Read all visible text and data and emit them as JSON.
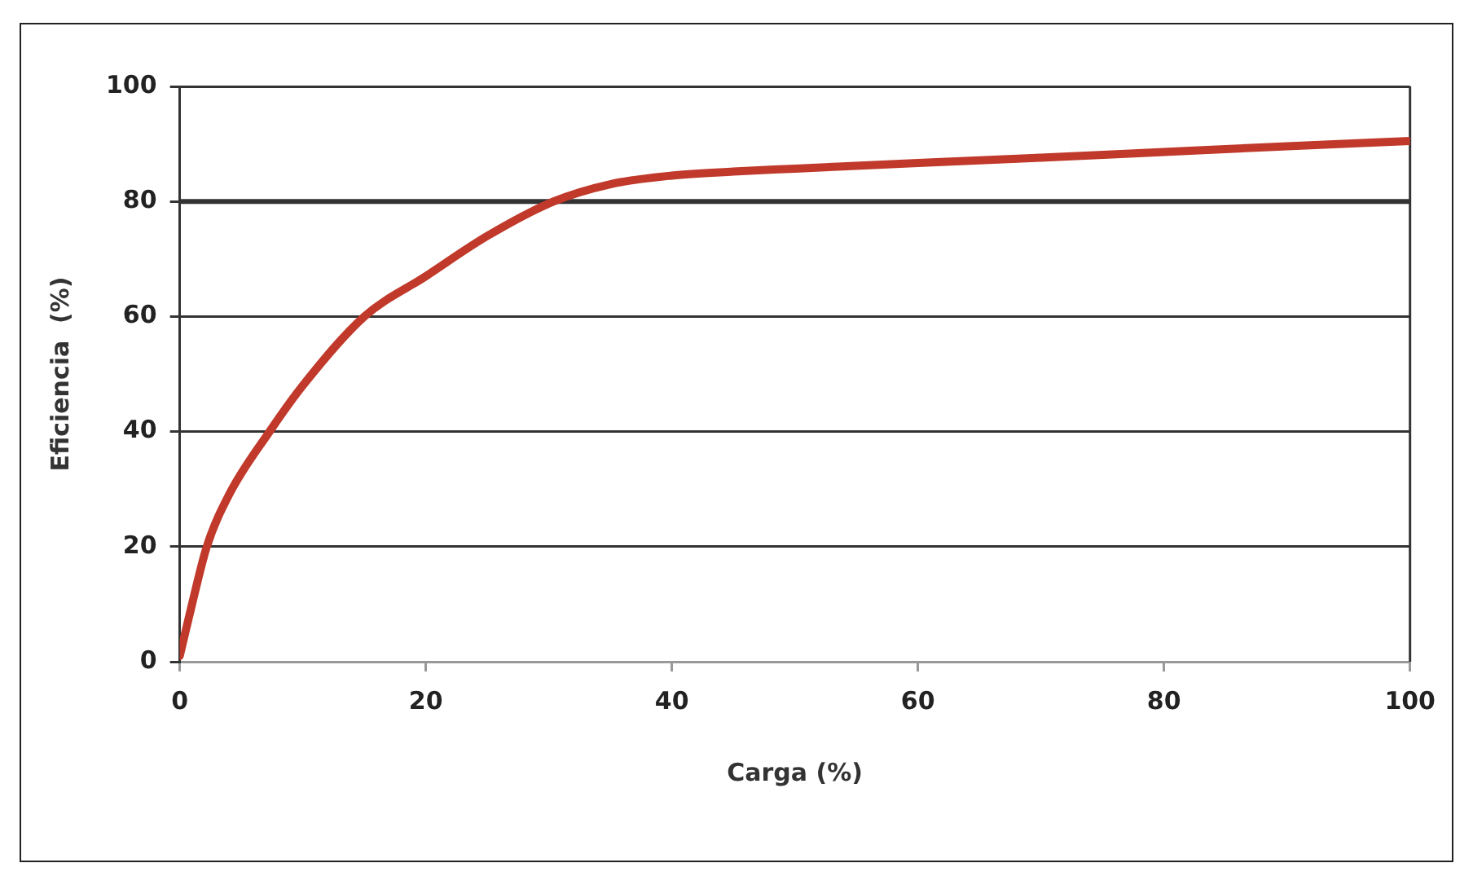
{
  "chart_data": {
    "type": "line",
    "xlabel": "Carga (%)",
    "ylabel": "Eficiencia  (%)",
    "x": [
      0,
      1,
      2.2,
      4,
      7.3,
      10,
      15,
      20,
      25,
      30.4,
      35,
      40,
      45,
      50,
      60,
      70,
      80,
      90,
      100
    ],
    "series": [
      {
        "color": "#c0392b",
        "values": [
          1,
          10,
          20,
          29,
          40,
          48,
          60,
          67,
          74,
          80,
          83,
          84.5,
          85.2,
          85.7,
          86.7,
          87.6,
          88.6,
          89.6,
          90.5
        ]
      }
    ],
    "xlim": [
      0,
      100
    ],
    "xticks": [
      0,
      20,
      40,
      60,
      80,
      100
    ],
    "ylim": [
      0,
      100
    ],
    "yticks": [
      0,
      20,
      40,
      60,
      80,
      100
    ],
    "grid": "y",
    "legend": false,
    "marker": "none",
    "line_style": "solid",
    "ref_lines": [
      {
        "axis": "y",
        "value": 80,
        "color": "#333333"
      }
    ]
  }
}
